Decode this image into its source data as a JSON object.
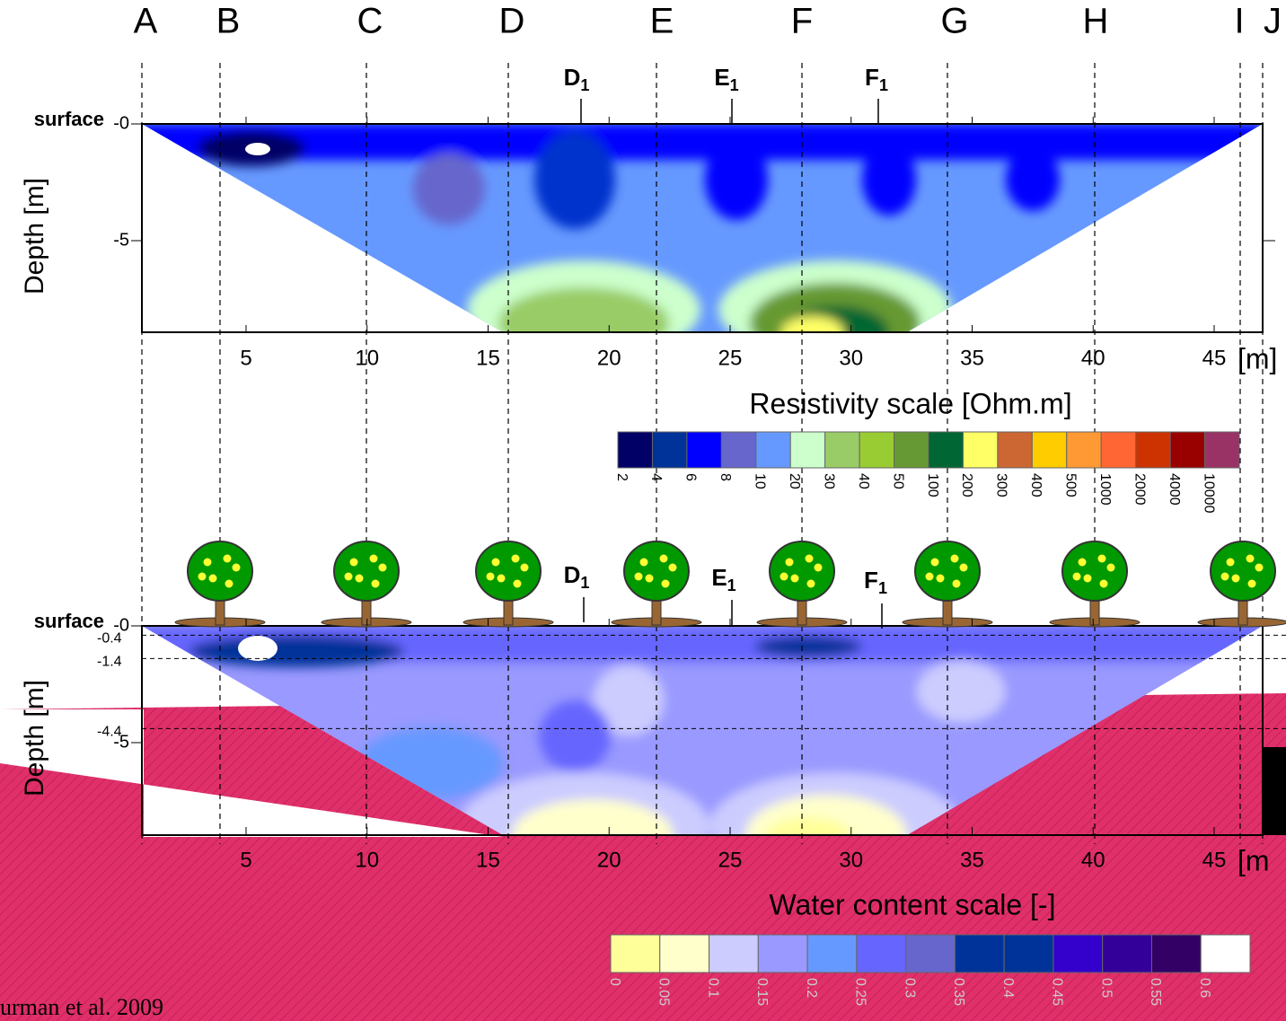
{
  "section_labels": [
    "A",
    "B",
    "C",
    "D",
    "E",
    "F",
    "G",
    "H",
    "I",
    "J"
  ],
  "sub_labels": [
    {
      "letter": "D",
      "subscript": "1"
    },
    {
      "letter": "E",
      "subscript": "1"
    },
    {
      "letter": "F",
      "subscript": "1"
    }
  ],
  "top_panel": {
    "surface_label": "surface",
    "y_axis_label": "Depth [m]",
    "y_ticks": [
      {
        "value": 0,
        "label": "-0"
      },
      -5
    ],
    "x_ticks": [
      5,
      10,
      15,
      20,
      25,
      30,
      35,
      40,
      45
    ],
    "x_unit": "[m]"
  },
  "resistivity_scale": {
    "title": "Resistivity scale [Ohm.m]",
    "labels": [
      2,
      4,
      6,
      8,
      10,
      20,
      30,
      40,
      50,
      100,
      200,
      300,
      400,
      500,
      1000,
      2000,
      4000,
      10000
    ],
    "colors": [
      "#000066",
      "#003399",
      "#0000ff",
      "#6666cc",
      "#6699ff",
      "#ccffcc",
      "#99cc66",
      "#99cc33",
      "#669933",
      "#006633",
      "#ffff66",
      "#cc6633",
      "#ffcc00",
      "#ff9933",
      "#ff6633",
      "#cc3300",
      "#990000",
      "#993366"
    ]
  },
  "bottom_panel": {
    "surface_label": "surface",
    "y_axis_label": "Depth [m]",
    "y_ticks": [
      {
        "value": 0,
        "label": "-0"
      },
      -5
    ],
    "depth_marks": [
      -0.4,
      -1.4,
      -4.4
    ],
    "x_ticks": [
      5,
      10,
      15,
      20,
      25,
      30,
      35,
      40,
      45
    ],
    "x_unit": "[m"
  },
  "water_scale": {
    "title": "Water content scale [-]",
    "labels": [
      0,
      0.05,
      0.1,
      0.15,
      0.2,
      0.25,
      0.3,
      0.35,
      0.4,
      0.45,
      0.5,
      0.55,
      0.6
    ],
    "colors": [
      "#ffff99",
      "#ffffcc",
      "#ccccff",
      "#9999ff",
      "#6699ff",
      "#6666ff",
      "#6666cc",
      "#003399",
      "#003399",
      "#3300cc",
      "#330099",
      "#330066",
      "#ffffff"
    ]
  },
  "citation": "urman et al. 2009"
}
